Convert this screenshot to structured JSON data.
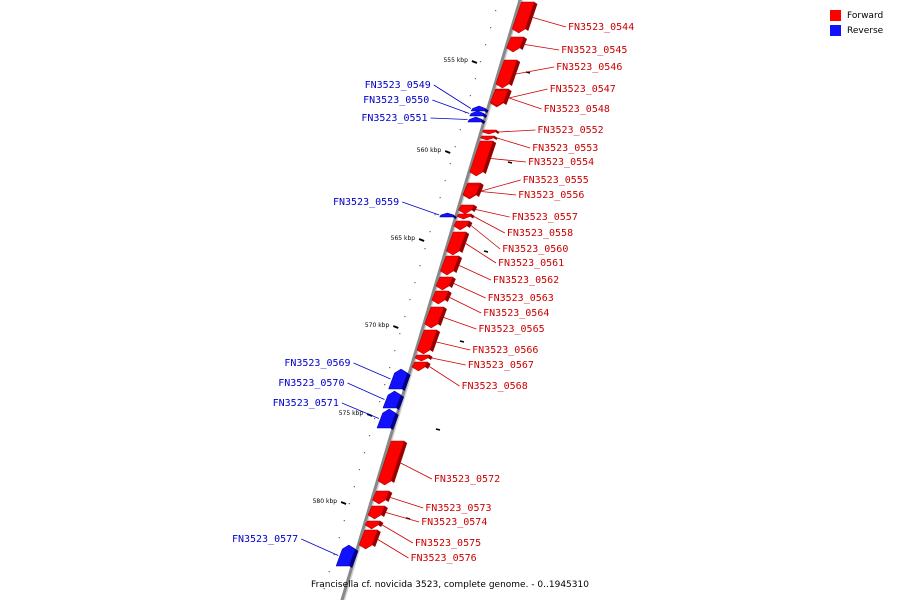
{
  "legend": [
    {
      "label": "Forward",
      "color": "#ff0000"
    },
    {
      "label": "Reverse",
      "color": "#1111ff"
    }
  ],
  "caption": "Francisella cf. novicida 3523, complete genome. - 0..1945310",
  "scale_labels": [
    "555 kbp",
    "560 kbp",
    "565 kbp",
    "570 kbp",
    "575 kbp",
    "580 kbp"
  ],
  "colors": {
    "forward": "#ff0000",
    "forward_label": "#cc0000",
    "reverse": "#1111ff",
    "reverse_label": "#0000cc",
    "track": "#888888"
  },
  "genes": [
    {
      "name": "FN3523_0544",
      "strand": "forward"
    },
    {
      "name": "FN3523_0545",
      "strand": "forward"
    },
    {
      "name": "FN3523_0546",
      "strand": "forward"
    },
    {
      "name": "FN3523_0547",
      "strand": "forward"
    },
    {
      "name": "FN3523_0548",
      "strand": "forward"
    },
    {
      "name": "FN3523_0549",
      "strand": "reverse"
    },
    {
      "name": "FN3523_0550",
      "strand": "reverse"
    },
    {
      "name": "FN3523_0551",
      "strand": "reverse"
    },
    {
      "name": "FN3523_0552",
      "strand": "forward"
    },
    {
      "name": "FN3523_0553",
      "strand": "forward"
    },
    {
      "name": "FN3523_0554",
      "strand": "forward"
    },
    {
      "name": "FN3523_0555",
      "strand": "forward"
    },
    {
      "name": "FN3523_0556",
      "strand": "forward"
    },
    {
      "name": "FN3523_0557",
      "strand": "forward"
    },
    {
      "name": "FN3523_0558",
      "strand": "forward"
    },
    {
      "name": "FN3523_0559",
      "strand": "reverse"
    },
    {
      "name": "FN3523_0560",
      "strand": "forward"
    },
    {
      "name": "FN3523_0561",
      "strand": "forward"
    },
    {
      "name": "FN3523_0562",
      "strand": "forward"
    },
    {
      "name": "FN3523_0563",
      "strand": "forward"
    },
    {
      "name": "FN3523_0564",
      "strand": "forward"
    },
    {
      "name": "FN3523_0565",
      "strand": "forward"
    },
    {
      "name": "FN3523_0566",
      "strand": "forward"
    },
    {
      "name": "FN3523_0567",
      "strand": "forward"
    },
    {
      "name": "FN3523_0568",
      "strand": "forward"
    },
    {
      "name": "FN3523_0569",
      "strand": "reverse"
    },
    {
      "name": "FN3523_0570",
      "strand": "reverse"
    },
    {
      "name": "FN3523_0571",
      "strand": "reverse"
    },
    {
      "name": "FN3523_0572",
      "strand": "forward"
    },
    {
      "name": "FN3523_0573",
      "strand": "forward"
    },
    {
      "name": "FN3523_0574",
      "strand": "forward"
    },
    {
      "name": "FN3523_0575",
      "strand": "forward"
    },
    {
      "name": "FN3523_0576",
      "strand": "forward"
    },
    {
      "name": "FN3523_0577",
      "strand": "reverse"
    }
  ]
}
